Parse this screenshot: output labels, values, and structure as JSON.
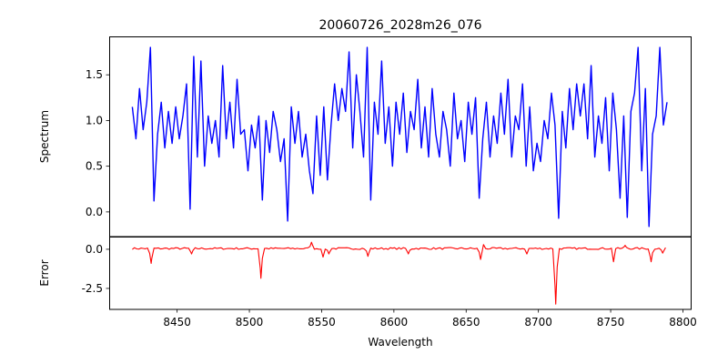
{
  "chart_data": [
    {
      "type": "line",
      "title": "20060726_2028m26_076",
      "xlabel": "",
      "ylabel": "Spectrum",
      "xlim": [
        8403,
        8806
      ],
      "ylim": [
        -0.27,
        1.92
      ],
      "yticks": [
        0.0,
        0.5,
        1.0,
        1.5
      ],
      "ytick_labels": [
        "0.0",
        "0.5",
        "1.0",
        "1.5"
      ],
      "grid": false,
      "series": [
        {
          "name": "spectrum",
          "color": "#0000ff",
          "x_start": 8419,
          "x_step": 2.5,
          "values": [
            1.15,
            0.8,
            1.35,
            0.9,
            1.2,
            1.8,
            0.12,
            0.85,
            1.2,
            0.7,
            1.1,
            0.75,
            1.15,
            0.8,
            1.05,
            1.4,
            0.03,
            1.7,
            0.6,
            1.65,
            0.5,
            1.05,
            0.75,
            1.0,
            0.6,
            1.6,
            0.8,
            1.2,
            0.7,
            1.45,
            0.85,
            0.9,
            0.45,
            0.95,
            0.7,
            1.05,
            0.13,
            1.0,
            0.65,
            1.1,
            0.9,
            0.55,
            0.8,
            -0.1,
            1.15,
            0.75,
            1.1,
            0.6,
            0.85,
            0.45,
            0.2,
            1.05,
            0.4,
            1.15,
            0.35,
            0.95,
            1.4,
            1.0,
            1.35,
            1.1,
            1.75,
            0.7,
            1.5,
            1.1,
            0.6,
            1.8,
            0.13,
            1.2,
            0.85,
            1.65,
            0.75,
            1.15,
            0.5,
            1.2,
            0.85,
            1.3,
            0.65,
            1.1,
            0.9,
            1.45,
            0.7,
            1.15,
            0.6,
            1.35,
            0.85,
            0.6,
            1.1,
            0.9,
            0.5,
            1.3,
            0.8,
            1.0,
            0.55,
            1.2,
            0.85,
            1.25,
            0.15,
            0.8,
            1.2,
            0.6,
            1.05,
            0.75,
            1.3,
            0.85,
            1.45,
            0.6,
            1.05,
            0.9,
            1.4,
            0.5,
            1.15,
            0.45,
            0.75,
            0.55,
            1.0,
            0.8,
            1.3,
            0.95,
            -0.07,
            1.1,
            0.7,
            1.35,
            0.9,
            1.4,
            1.05,
            1.4,
            0.8,
            1.6,
            0.6,
            1.05,
            0.75,
            1.25,
            0.45,
            1.3,
            0.9,
            0.15,
            1.05,
            -0.06,
            1.1,
            1.3,
            1.8,
            0.45,
            1.35,
            -0.16,
            0.85,
            1.05,
            1.8,
            0.95,
            1.2
          ]
        }
      ]
    },
    {
      "type": "line",
      "title": "",
      "xlabel": "Wavelength",
      "ylabel": "Error",
      "xlim": [
        8403,
        8806
      ],
      "ylim": [
        -3.84,
        0.81
      ],
      "xticks": [
        8450,
        8500,
        8550,
        8600,
        8650,
        8700,
        8750,
        8800
      ],
      "xtick_labels": [
        "8450",
        "8500",
        "8550",
        "8600",
        "8650",
        "8700",
        "8750",
        "8800"
      ],
      "yticks": [
        0.0,
        -2.5
      ],
      "ytick_labels": [
        "0.0",
        "-2.5"
      ],
      "grid": false,
      "series": [
        {
          "name": "error",
          "color": "#ff0000",
          "x_start": 8419,
          "x_end": 8788,
          "x_step": 1.5,
          "baseline": 0.05,
          "features": [
            [
              8432,
              -0.9
            ],
            [
              8460,
              -0.3
            ],
            [
              8508,
              -1.85
            ],
            [
              8543,
              0.45
            ],
            [
              8551,
              -0.5
            ],
            [
              8555,
              -0.3
            ],
            [
              8582,
              -0.45
            ],
            [
              8610,
              -0.3
            ],
            [
              8660,
              -0.65
            ],
            [
              8662,
              0.3
            ],
            [
              8692,
              -0.3
            ],
            [
              8712,
              -3.5
            ],
            [
              8752,
              -0.8
            ],
            [
              8760,
              0.25
            ],
            [
              8778,
              -0.8
            ],
            [
              8786,
              -0.25
            ]
          ]
        }
      ]
    }
  ]
}
